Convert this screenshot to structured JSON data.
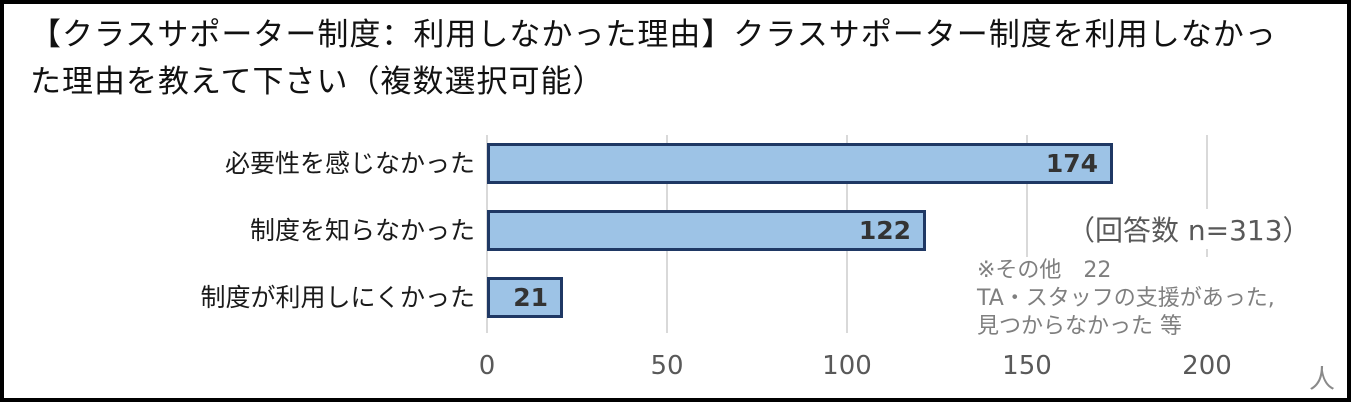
{
  "title": "【クラスサポーター制度：利用しなかった理由】クラスサポーター制度を利用しなかった理由を教えて下さい（複数選択可能）",
  "chart_data": {
    "type": "bar",
    "orientation": "horizontal",
    "categories": [
      "必要性を感じなかった",
      "制度を知らなかった",
      "制度が利用しにくかった"
    ],
    "values": [
      174,
      122,
      21
    ],
    "xticks": [
      0,
      50,
      100,
      150,
      200
    ],
    "xlim": [
      0,
      200
    ],
    "x_unit": "人",
    "grid": "vertical-light-gray",
    "bar_fill_color": "#9dc3e6",
    "bar_border_color": "#1f3864",
    "annotations": {
      "respondents": "（回答数 n=313）",
      "other_line1": "※その他　22",
      "other_line2": "TA・スタッフの支援があった,",
      "other_line3": "見つからなかった 等"
    }
  }
}
